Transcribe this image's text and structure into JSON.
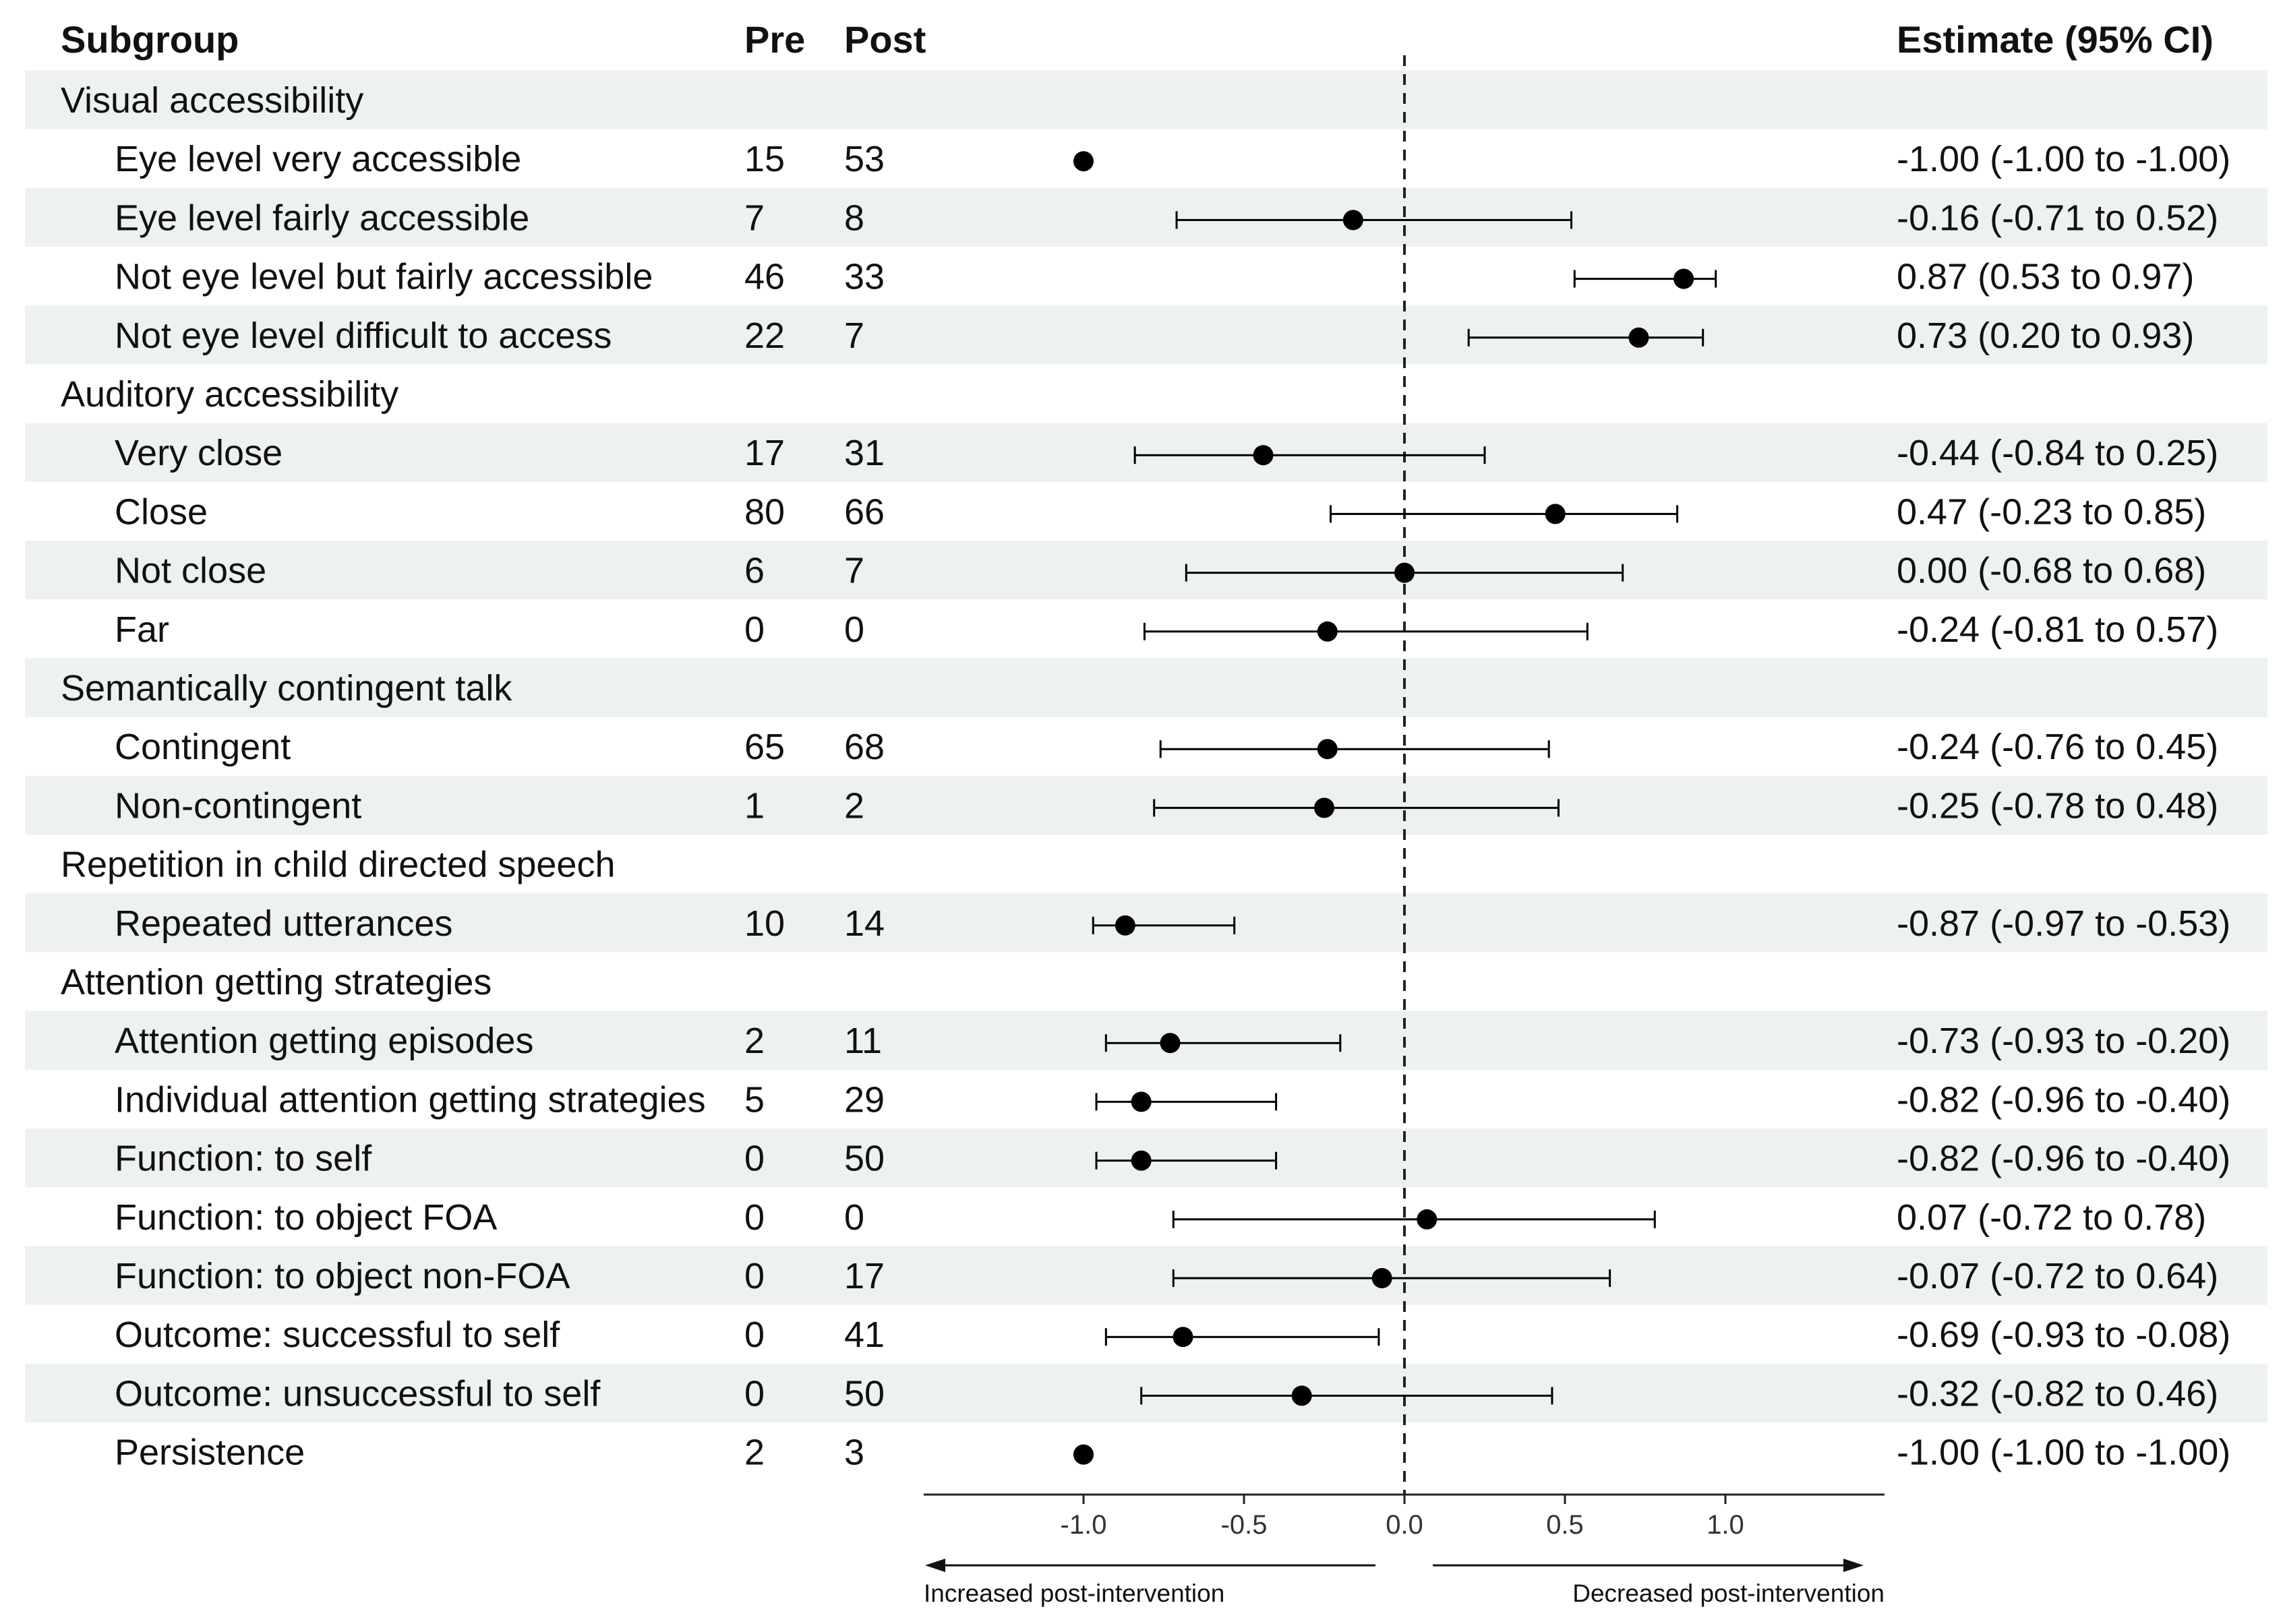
{
  "chart_data": {
    "type": "forest",
    "headers": {
      "subgroup": "Subgroup",
      "pre": "Pre",
      "post": "Post",
      "estimate": "Estimate (95% CI)"
    },
    "groups": [
      {
        "name": "Visual accessibility",
        "items": [
          {
            "label": "Eye level very accessible",
            "pre": "15",
            "post": "53",
            "estimate": -1.0,
            "lower": -1.0,
            "upper": -1.0,
            "text": "-1.00 (-1.00 to -1.00)"
          },
          {
            "label": "Eye level fairly accessible",
            "pre": "7",
            "post": "8",
            "estimate": -0.16,
            "lower": -0.71,
            "upper": 0.52,
            "text": "-0.16 (-0.71 to 0.52)"
          },
          {
            "label": "Not eye level but fairly accessible",
            "pre": "46",
            "post": "33",
            "estimate": 0.87,
            "lower": 0.53,
            "upper": 0.97,
            "text": "0.87 (0.53 to 0.97)"
          },
          {
            "label": "Not eye level difficult to access",
            "pre": "22",
            "post": "7",
            "estimate": 0.73,
            "lower": 0.2,
            "upper": 0.93,
            "text": "0.73 (0.20 to 0.93)"
          }
        ]
      },
      {
        "name": "Auditory accessibility",
        "items": [
          {
            "label": "Very close",
            "pre": "17",
            "post": "31",
            "estimate": -0.44,
            "lower": -0.84,
            "upper": 0.25,
            "text": "-0.44 (-0.84 to 0.25)"
          },
          {
            "label": "Close",
            "pre": "80",
            "post": "66",
            "estimate": 0.47,
            "lower": -0.23,
            "upper": 0.85,
            "text": "0.47 (-0.23 to 0.85)"
          },
          {
            "label": "Not close",
            "pre": "6",
            "post": "7",
            "estimate": 0.0,
            "lower": -0.68,
            "upper": 0.68,
            "text": "0.00 (-0.68 to 0.68)"
          },
          {
            "label": "Far",
            "pre": "0",
            "post": "0",
            "estimate": -0.24,
            "lower": -0.81,
            "upper": 0.57,
            "text": "-0.24 (-0.81 to 0.57)"
          }
        ]
      },
      {
        "name": "Semantically contingent talk",
        "items": [
          {
            "label": "Contingent",
            "pre": "65",
            "post": "68",
            "estimate": -0.24,
            "lower": -0.76,
            "upper": 0.45,
            "text": "-0.24 (-0.76 to 0.45)"
          },
          {
            "label": "Non-contingent",
            "pre": "1",
            "post": "2",
            "estimate": -0.25,
            "lower": -0.78,
            "upper": 0.48,
            "text": "-0.25 (-0.78 to 0.48)"
          }
        ]
      },
      {
        "name": "Repetition in child directed speech",
        "items": [
          {
            "label": "Repeated utterances",
            "pre": "10",
            "post": "14",
            "estimate": -0.87,
            "lower": -0.97,
            "upper": -0.53,
            "text": "-0.87 (-0.97 to -0.53)"
          }
        ]
      },
      {
        "name": "Attention getting strategies",
        "items": [
          {
            "label": "Attention getting episodes",
            "pre": "2",
            "post": "11",
            "estimate": -0.73,
            "lower": -0.93,
            "upper": -0.2,
            "text": "-0.73 (-0.93 to -0.20)"
          },
          {
            "label": "Individual attention getting strategies",
            "pre": "5",
            "post": "29",
            "estimate": -0.82,
            "lower": -0.96,
            "upper": -0.4,
            "text": "-0.82 (-0.96 to -0.40)"
          },
          {
            "label": "Function: to self",
            "pre": "0",
            "post": "50",
            "estimate": -0.82,
            "lower": -0.96,
            "upper": -0.4,
            "text": "-0.82 (-0.96 to -0.40)"
          },
          {
            "label": "Function: to object FOA",
            "pre": "0",
            "post": "0",
            "estimate": 0.07,
            "lower": -0.72,
            "upper": 0.78,
            "text": "0.07 (-0.72 to 0.78)"
          },
          {
            "label": "Function: to object non-FOA",
            "pre": "0",
            "post": "17",
            "estimate": -0.07,
            "lower": -0.72,
            "upper": 0.64,
            "text": "-0.07 (-0.72 to 0.64)"
          },
          {
            "label": "Outcome: successful to self",
            "pre": "0",
            "post": "41",
            "estimate": -0.69,
            "lower": -0.93,
            "upper": -0.08,
            "text": "-0.69 (-0.93 to -0.08)"
          },
          {
            "label": "Outcome: unsuccessful to self",
            "pre": "0",
            "post": "50",
            "estimate": -0.32,
            "lower": -0.82,
            "upper": 0.46,
            "text": "-0.32 (-0.82 to 0.46)"
          },
          {
            "label": "Persistence",
            "pre": "2",
            "post": "3",
            "estimate": -1.0,
            "lower": -1.0,
            "upper": -1.0,
            "text": "-1.00 (-1.00 to -1.00)"
          }
        ]
      }
    ],
    "x_axis": {
      "range": [
        -1.5,
        1.5
      ],
      "ticks": [
        -1.0,
        -0.5,
        0.0,
        0.5,
        1.0
      ],
      "tick_labels": [
        "-1.0",
        "-0.5",
        "0.0",
        "0.5",
        "1.0"
      ],
      "reference_line": 0,
      "left_label": "Increased post-intervention",
      "right_label": "Decreased post-intervention"
    },
    "colors": {
      "stripe": "#eef1f1",
      "marker": "#000000",
      "text": "#111111"
    }
  }
}
